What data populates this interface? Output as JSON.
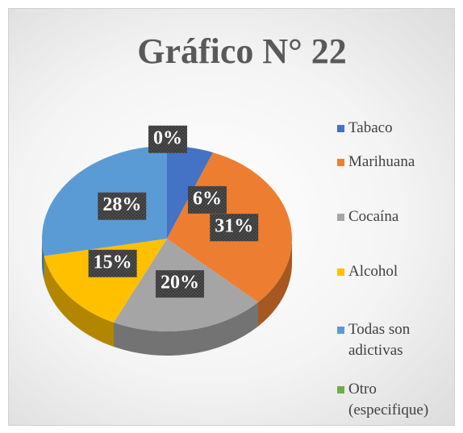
{
  "chart_data": {
    "type": "pie3d",
    "title": "Gráfico N° 22",
    "categories": [
      "Tabaco",
      "Marihuana",
      "Cocaína",
      "Alcohol",
      "Todas son adictivas",
      "Otro (especifique)"
    ],
    "values": [
      6,
      31,
      20,
      15,
      28,
      0
    ],
    "value_labels": [
      "6%",
      "31%",
      "20%",
      "15%",
      "28%",
      "0%"
    ],
    "colors": [
      "#4472c4",
      "#ed7d31",
      "#a5a5a5",
      "#ffc000",
      "#5b9bd5",
      "#70ad47"
    ],
    "legend": "right"
  }
}
